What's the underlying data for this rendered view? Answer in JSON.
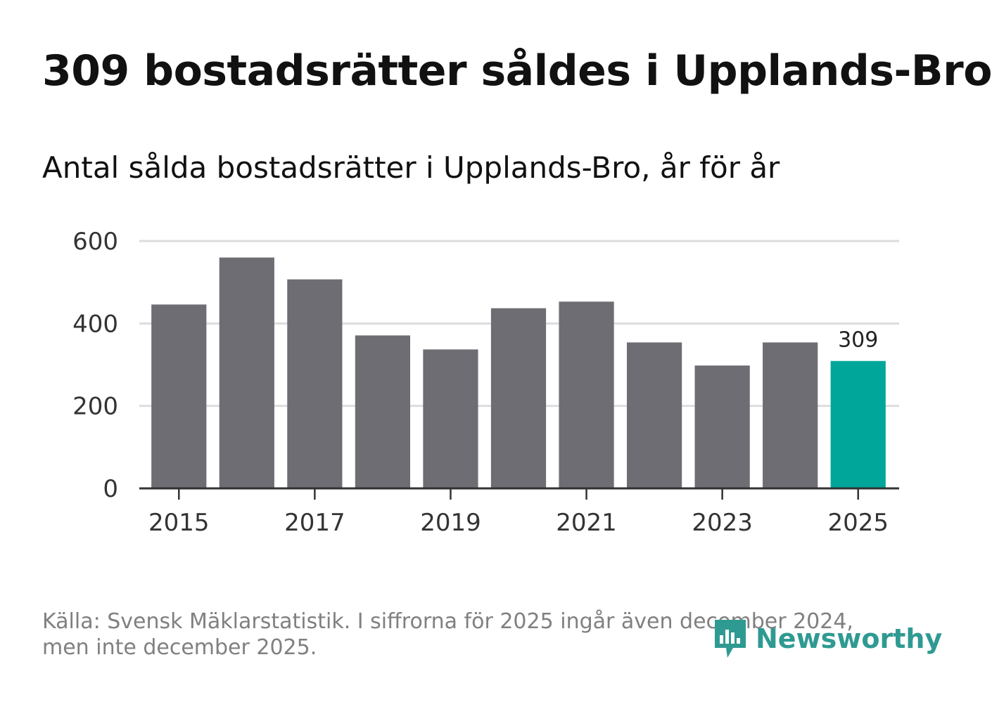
{
  "title": "309 bostadsrätter såldes i Upplands-Bro",
  "subtitle": "Antal sålda bostadsrätter i Upplands-Bro, år för år",
  "footer": {
    "line1": "Källa: Svensk Mäklarstatistik. I siffrorna för 2025 ingår även december 2024,",
    "line2": "men inte december 2025."
  },
  "brand": {
    "name": "Newsworthy",
    "icon": "newsworthy-logo-icon",
    "color": "#2f9a92"
  },
  "colors": {
    "bar": "#6e6d73",
    "highlight": "#00a69a",
    "grid": "#dddddd",
    "axis": "#333333"
  },
  "chart_data": {
    "type": "bar",
    "title": "309 bostadsrätter såldes i Upplands-Bro",
    "subtitle": "Antal sålda bostadsrätter i Upplands-Bro, år för år",
    "categories": [
      "2015",
      "2016",
      "2017",
      "2018",
      "2019",
      "2020",
      "2021",
      "2022",
      "2023",
      "2024",
      "2025"
    ],
    "values": [
      446,
      560,
      507,
      371,
      337,
      437,
      453,
      354,
      298,
      354,
      309
    ],
    "highlight_index": 10,
    "highlight_label": "309",
    "xticks": [
      "2015",
      "2017",
      "2019",
      "2021",
      "2023",
      "2025"
    ],
    "yticks": [
      0,
      200,
      400,
      600
    ],
    "ylim": [
      0,
      600
    ],
    "xlabel": "",
    "ylabel": "",
    "grid": true,
    "legend": "none"
  }
}
